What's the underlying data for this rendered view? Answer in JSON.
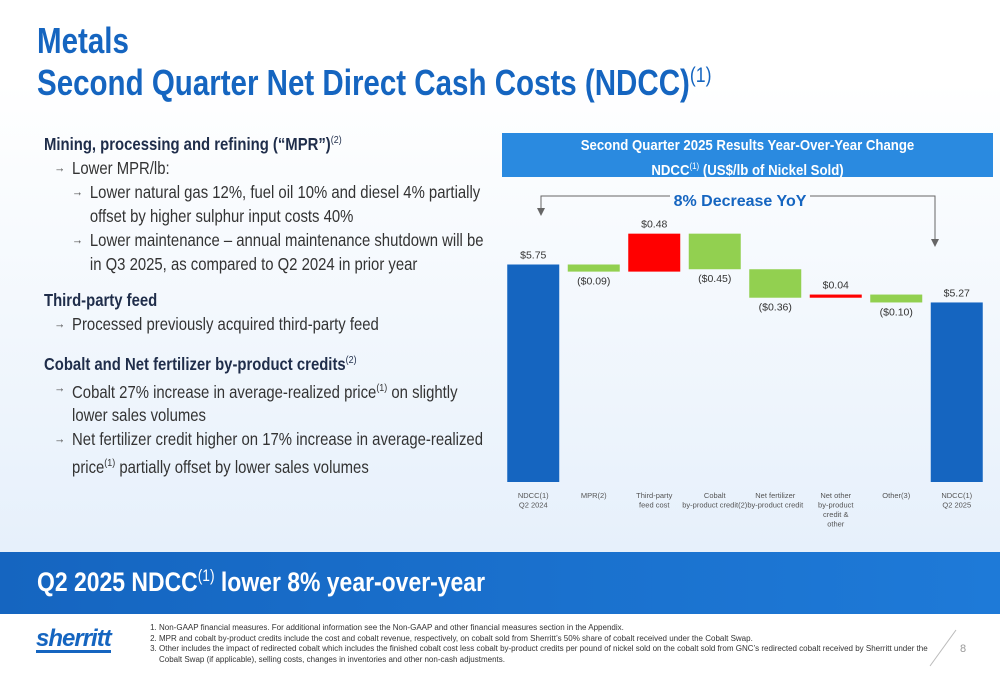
{
  "header": {
    "title": "Metals",
    "subtitle": [
      "Second Quarter Net Direct Cash Costs (NDCC)",
      "(1)"
    ]
  },
  "sections": [
    {
      "heading": [
        "Mining, processing and refining (“MPR”)",
        "(2)"
      ],
      "bullets": [
        {
          "level": 1,
          "parts": [
            "Lower MPR/lb:"
          ]
        },
        {
          "level": 2,
          "parts": [
            "Lower natural gas 12%, fuel oil 10% and diesel 4% partially offset by higher sulphur input costs 40%"
          ]
        },
        {
          "level": 2,
          "parts": [
            "Lower maintenance – annual maintenance shutdown will be in Q3 2025, as compared to Q2 2024 in prior year"
          ]
        }
      ]
    },
    {
      "heading": [
        "Third-party feed"
      ],
      "bullets": [
        {
          "level": 1,
          "parts": [
            "Processed previously acquired third-party feed"
          ]
        }
      ]
    },
    {
      "heading": [
        "Cobalt and Net fertilizer by-product credits",
        "(2)"
      ],
      "bullets": [
        {
          "level": 1,
          "parts": [
            "Cobalt 27% increase in average-realized price",
            "(1)",
            " on slightly lower sales volumes"
          ]
        },
        {
          "level": 1,
          "parts": [
            "Net fertilizer credit higher on 17% increase in average-realized price",
            "(1)",
            "  partially offset by lower sales volumes"
          ]
        }
      ]
    }
  ],
  "chart_data": {
    "type": "waterfall",
    "title": "Second Quarter 2025 Results Year-Over-Year Change",
    "subtitle": [
      "NDCC",
      "(1)",
      " (US$/lb of Nickel Sold)"
    ],
    "annotation": "8% Decrease YoY",
    "categories": [
      [
        "NDCC(1)",
        "Q2 2024"
      ],
      [
        "MPR(2)"
      ],
      [
        "Third-party",
        "feed cost"
      ],
      [
        "Cobalt",
        "by-product credit(2)"
      ],
      [
        "Net fertilizer",
        "by-product credit"
      ],
      [
        "Net other",
        "by-product",
        "credit &",
        "other"
      ],
      [
        "Other(3)"
      ],
      [
        "NDCC(1)",
        "Q2 2025"
      ]
    ],
    "measures": [
      "total",
      "relative",
      "relative",
      "relative",
      "relative",
      "relative",
      "relative",
      "total"
    ],
    "values": [
      5.75,
      -0.09,
      0.48,
      -0.45,
      -0.36,
      0.04,
      -0.1,
      5.27
    ],
    "value_labels": [
      "$5.75",
      "($0.09)",
      "$0.48",
      "($0.45)",
      "($0.36)",
      "$0.04",
      "($0.10)",
      "$5.27"
    ],
    "colors": {
      "total": "#1565c0",
      "increase": "#ff0000",
      "decrease": "#92d050"
    },
    "ylim": [
      3,
      6.3
    ]
  },
  "banner": [
    "Q2 2025 NDCC",
    "(1)",
    "  lower 8% year-over-year"
  ],
  "logo": "sherritt",
  "footnotes": [
    "Non-GAAP financial measures. For additional information see the Non-GAAP and other financial measures section in the Appendix.",
    "MPR and cobalt by-product credits include the cost and cobalt revenue, respectively, on cobalt sold from Sherritt’s 50% share of cobalt received under the Cobalt Swap.",
    "Other includes the impact of redirected cobalt which includes the finished cobalt cost less cobalt by-product credits per pound of nickel sold on the cobalt sold from GNC’s redirected cobalt received by Sherritt under the Cobalt Swap (if applicable), selling costs, changes in inventories and other non-cash adjustments."
  ],
  "page": "8"
}
